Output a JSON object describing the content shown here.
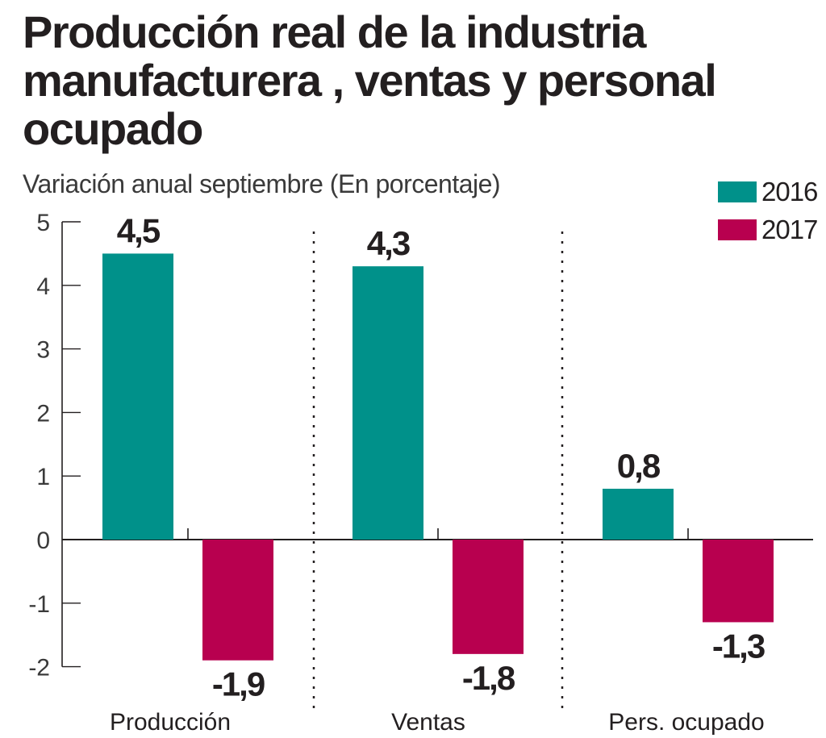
{
  "chart_data": {
    "type": "bar",
    "title": "Producción real de la industria manufacturera , ventas y personal ocupado",
    "subtitle": "Variación anual septiembre (En porcentaje)",
    "xlabel": "",
    "ylabel": "",
    "ylim": [
      -2,
      5
    ],
    "yticks": [
      5,
      4,
      3,
      2,
      1,
      0,
      -1,
      -2
    ],
    "ytick_labels": [
      "5",
      "4",
      "3",
      "2",
      "1",
      "0",
      "-1",
      "-2"
    ],
    "categories": [
      "Producción",
      "Ventas",
      "Pers. ocupado"
    ],
    "series": [
      {
        "name": "2016",
        "color": "#00918a",
        "values": [
          4.5,
          4.3,
          0.8
        ],
        "labels": [
          "4,5",
          "4,3",
          "0,8"
        ]
      },
      {
        "name": "2017",
        "color": "#b8004f",
        "values": [
          -1.9,
          -1.8,
          -1.3
        ],
        "labels": [
          "-1,9",
          "-1,8",
          "-1,3"
        ]
      }
    ],
    "legend": "top-right",
    "grid": false
  }
}
